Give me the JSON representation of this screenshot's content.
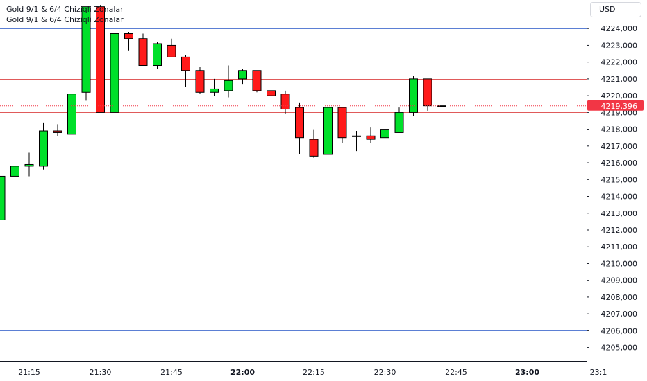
{
  "legend": {
    "line1": "Gold 9/1 & 6/4 Chiziqli Zonalar",
    "line2": "Gold 9/1 & 6/4 Chiziqli Zonalar"
  },
  "currency": "USD",
  "colors": {
    "up": "#00e02a",
    "down": "#ff1a1a",
    "blue_line": "#5b7fd4",
    "red_line": "#e05a5a",
    "price_tag": "#f23645",
    "axis_text": "#131722"
  },
  "last_price_label": "4219,396",
  "chart_data": {
    "type": "candlestick",
    "timeframe_minutes": 3,
    "y_axis": {
      "ylim": [
        4204.2,
        4225.7
      ],
      "ticks": [
        "4205,000",
        "4206,000",
        "4207,000",
        "4208,000",
        "4209,000",
        "4210,000",
        "4211,000",
        "4212,000",
        "4213,000",
        "4214,000",
        "4215,000",
        "4216,000",
        "4217,000",
        "4218,000",
        "4219,000",
        "4220,000",
        "4221,000",
        "4222,000",
        "4223,000",
        "4224,000"
      ]
    },
    "x_axis": {
      "labels": [
        {
          "text": "21:15",
          "bold": false
        },
        {
          "text": "21:30",
          "bold": false
        },
        {
          "text": "21:45",
          "bold": false
        },
        {
          "text": "22:00",
          "bold": true
        },
        {
          "text": "22:15",
          "bold": false
        },
        {
          "text": "22:30",
          "bold": false
        },
        {
          "text": "22:45",
          "bold": false
        },
        {
          "text": "23:00",
          "bold": true
        },
        {
          "text": "23:1",
          "bold": false
        }
      ]
    },
    "zones": [
      {
        "price": 4224.0,
        "color": "blue"
      },
      {
        "price": 4221.0,
        "color": "red"
      },
      {
        "price": 4219.0,
        "color": "red"
      },
      {
        "price": 4216.0,
        "color": "blue"
      },
      {
        "price": 4214.0,
        "color": "blue"
      },
      {
        "price": 4211.0,
        "color": "red"
      },
      {
        "price": 4209.0,
        "color": "red"
      },
      {
        "price": 4206.0,
        "color": "blue"
      }
    ],
    "last_price": 4219.396,
    "candles": [
      {
        "time": "21:09",
        "open": 4212.6,
        "high": 4215.2,
        "low": 4212.6,
        "close": 4215.2
      },
      {
        "time": "21:12",
        "open": 4215.2,
        "high": 4216.2,
        "low": 4214.9,
        "close": 4215.8
      },
      {
        "time": "21:15",
        "open": 4215.8,
        "high": 4216.6,
        "low": 4215.2,
        "close": 4215.9
      },
      {
        "time": "21:18",
        "open": 4215.8,
        "high": 4218.4,
        "low": 4215.6,
        "close": 4217.9
      },
      {
        "time": "21:21",
        "open": 4217.9,
        "high": 4218.3,
        "low": 4217.6,
        "close": 4217.8
      },
      {
        "time": "21:24",
        "open": 4217.7,
        "high": 4220.7,
        "low": 4217.1,
        "close": 4220.1
      },
      {
        "time": "21:27",
        "open": 4220.2,
        "high": 4225.3,
        "low": 4219.7,
        "close": 4225.3
      },
      {
        "time": "21:30",
        "open": 4225.3,
        "high": 4225.4,
        "low": 4219.0,
        "close": 4219.0
      },
      {
        "time": "21:33",
        "open": 4219.0,
        "high": 4223.7,
        "low": 4219.0,
        "close": 4223.7
      },
      {
        "time": "21:36",
        "open": 4223.7,
        "high": 4223.8,
        "low": 4222.7,
        "close": 4223.4
      },
      {
        "time": "21:39",
        "open": 4223.4,
        "high": 4223.7,
        "low": 4221.8,
        "close": 4221.8
      },
      {
        "time": "21:42",
        "open": 4221.8,
        "high": 4223.2,
        "low": 4221.6,
        "close": 4223.1
      },
      {
        "time": "21:45",
        "open": 4223.0,
        "high": 4223.4,
        "low": 4222.3,
        "close": 4222.3
      },
      {
        "time": "21:48",
        "open": 4222.3,
        "high": 4222.4,
        "low": 4220.5,
        "close": 4221.5
      },
      {
        "time": "21:51",
        "open": 4221.5,
        "high": 4221.7,
        "low": 4220.1,
        "close": 4220.2
      },
      {
        "time": "21:54",
        "open": 4220.2,
        "high": 4221.0,
        "low": 4220.0,
        "close": 4220.4
      },
      {
        "time": "21:57",
        "open": 4220.3,
        "high": 4221.8,
        "low": 4219.9,
        "close": 4220.9
      },
      {
        "time": "22:00",
        "open": 4221.0,
        "high": 4221.6,
        "low": 4220.7,
        "close": 4221.5
      },
      {
        "time": "22:03",
        "open": 4221.5,
        "high": 4221.5,
        "low": 4220.2,
        "close": 4220.3
      },
      {
        "time": "22:06",
        "open": 4220.3,
        "high": 4220.7,
        "low": 4220.0,
        "close": 4220.0
      },
      {
        "time": "22:09",
        "open": 4220.1,
        "high": 4220.3,
        "low": 4218.9,
        "close": 4219.2
      },
      {
        "time": "22:12",
        "open": 4219.3,
        "high": 4219.6,
        "low": 4216.5,
        "close": 4217.5
      },
      {
        "time": "22:15",
        "open": 4217.4,
        "high": 4218.0,
        "low": 4216.3,
        "close": 4216.4
      },
      {
        "time": "22:18",
        "open": 4216.5,
        "high": 4219.4,
        "low": 4216.5,
        "close": 4219.3
      },
      {
        "time": "22:21",
        "open": 4219.3,
        "high": 4219.3,
        "low": 4217.2,
        "close": 4217.5
      },
      {
        "time": "22:24",
        "open": 4217.6,
        "high": 4217.9,
        "low": 4216.7,
        "close": 4217.6
      },
      {
        "time": "22:27",
        "open": 4217.6,
        "high": 4218.1,
        "low": 4217.2,
        "close": 4217.4
      },
      {
        "time": "22:30",
        "open": 4217.5,
        "high": 4218.3,
        "low": 4217.4,
        "close": 4218.0
      },
      {
        "time": "22:33",
        "open": 4217.8,
        "high": 4219.3,
        "low": 4217.8,
        "close": 4219.0
      },
      {
        "time": "22:36",
        "open": 4219.0,
        "high": 4221.2,
        "low": 4218.8,
        "close": 4221.0
      },
      {
        "time": "22:39",
        "open": 4221.0,
        "high": 4221.0,
        "low": 4219.1,
        "close": 4219.4
      },
      {
        "time": "22:42",
        "open": 4219.4,
        "high": 4219.5,
        "low": 4219.3,
        "close": 4219.4
      }
    ]
  }
}
